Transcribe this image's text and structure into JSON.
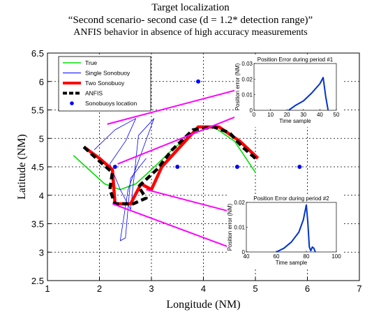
{
  "title_lines": [
    "Target localization",
    "“Second scenario- second case (d = 1.2* detection range)”",
    "ANFIS behavior in absence of high accuracy measurements"
  ],
  "colors": {
    "true": "#00dd00",
    "single": "#0000ff",
    "two": "#ff0000",
    "anfis": "#000000",
    "sonobuoy": "#0000ff",
    "arrow": "#ff00ff",
    "inset_line": "#0033cc"
  },
  "chart_data": [
    {
      "type": "line",
      "xlabel": "Longitude (NM)",
      "ylabel": "Latitude (NM)",
      "xlim": [
        1,
        7
      ],
      "ylim": [
        2.5,
        6.5
      ],
      "xticks": [
        1,
        2,
        3,
        4,
        5,
        6,
        7
      ],
      "yticks": [
        2.5,
        3,
        3.5,
        4,
        4.5,
        5,
        5.5,
        6,
        6.5
      ],
      "tick_labels_x": [
        "1",
        "2",
        "3",
        "4",
        "5",
        "6",
        "7"
      ],
      "tick_labels_y": [
        "2.5",
        "3",
        "3.5",
        "4",
        "4.5",
        "5",
        "5.5",
        "6",
        "6.5"
      ],
      "grid": true,
      "legend_position": "top-left",
      "legend": [
        "True",
        "Single Sonobuoy",
        "Two Sonobuoy",
        "ANFIS",
        "Sonobuoys location"
      ],
      "series": [
        {
          "name": "True",
          "style": "line",
          "x": [
            1.5,
            1.8,
            2.1,
            2.4,
            2.7,
            3.0,
            3.4,
            3.8,
            4.2,
            4.6,
            5.0
          ],
          "y": [
            4.7,
            4.45,
            4.2,
            4.1,
            4.2,
            4.45,
            4.8,
            5.1,
            5.2,
            4.95,
            4.4
          ]
        },
        {
          "name": "Single Sonobuoy",
          "style": "line",
          "x": [
            1.9,
            2.3,
            2.7,
            2.5,
            2.2,
            2.4,
            2.6,
            2.75,
            3.05,
            2.55,
            2.4,
            2.5,
            2.6,
            2.9
          ],
          "y": [
            4.8,
            5.15,
            5.35,
            4.95,
            4.55,
            4.1,
            3.75,
            5.05,
            5.35,
            4.1,
            3.2,
            3.25,
            4.3,
            4.65
          ]
        },
        {
          "name": "Two Sonobuoy",
          "style": "line",
          "x": [
            1.7,
            2.0,
            2.25,
            2.3,
            2.6,
            2.8,
            3.0,
            3.2,
            3.6,
            3.9,
            4.3,
            4.7,
            5.05
          ],
          "y": [
            4.85,
            4.65,
            4.45,
            3.85,
            3.85,
            4.2,
            4.1,
            4.5,
            4.9,
            5.2,
            5.2,
            4.95,
            4.65
          ]
        },
        {
          "name": "ANFIS",
          "style": "dash",
          "x": [
            1.7,
            2.0,
            2.25,
            2.2,
            2.3,
            2.65,
            2.9,
            2.75,
            3.1,
            3.4,
            3.8,
            4.2,
            4.5,
            4.75,
            5.0
          ],
          "y": [
            4.85,
            4.6,
            4.4,
            4.1,
            3.85,
            3.85,
            3.95,
            4.15,
            4.45,
            4.8,
            5.15,
            5.2,
            5.1,
            4.85,
            4.65
          ]
        },
        {
          "name": "Sonobuoys location",
          "style": "marker",
          "x": [
            2.3,
            3.5,
            3.9,
            4.65,
            5.85
          ],
          "y": [
            4.5,
            4.5,
            6.0,
            4.5,
            4.5
          ]
        }
      ],
      "arrows": [
        {
          "from": [
            2.15,
            5.25
          ],
          "to": [
            5.05,
            5.95
          ]
        },
        {
          "from": [
            2.35,
            4.55
          ],
          "to": [
            5.55,
            5.72
          ]
        },
        {
          "from": [
            2.25,
            3.85
          ],
          "to": [
            4.9,
            2.95
          ]
        },
        {
          "from": [
            2.9,
            4.1
          ],
          "to": [
            5.2,
            3.55
          ]
        }
      ]
    },
    {
      "type": "line",
      "title": "Position Error during period #1",
      "xlabel": "Time sample",
      "ylabel": "Position error (NM)",
      "xlim": [
        0,
        50
      ],
      "ylim": [
        0,
        0.03
      ],
      "tick_labels_x": [
        "0",
        "10",
        "20",
        "30",
        "40",
        "50"
      ],
      "tick_labels_y": [
        "0",
        "0.01",
        "0.02",
        "0.03"
      ],
      "series": [
        {
          "x": [
            21,
            25,
            30,
            35,
            40,
            42,
            43.5,
            45
          ],
          "y": [
            0.0,
            0.003,
            0.006,
            0.011,
            0.017,
            0.021,
            0.009,
            0.0
          ]
        }
      ]
    },
    {
      "type": "line",
      "title": "Position Error during period #2",
      "xlabel": "Time sample",
      "ylabel": "Position error (NM)",
      "xlim": [
        40,
        100
      ],
      "ylim": [
        0,
        0.02
      ],
      "tick_labels_x": [
        "40",
        "60",
        "80",
        "100"
      ],
      "tick_labels_y": [
        "0",
        "0.01",
        "0.02"
      ],
      "series": [
        {
          "x": [
            60,
            65,
            70,
            75,
            78,
            80,
            81,
            82,
            83,
            84,
            85,
            86
          ],
          "y": [
            0.0,
            0.0015,
            0.004,
            0.008,
            0.013,
            0.019,
            0.012,
            0.002,
            0.0005,
            0.002,
            0.0015,
            0.0
          ]
        }
      ]
    }
  ]
}
